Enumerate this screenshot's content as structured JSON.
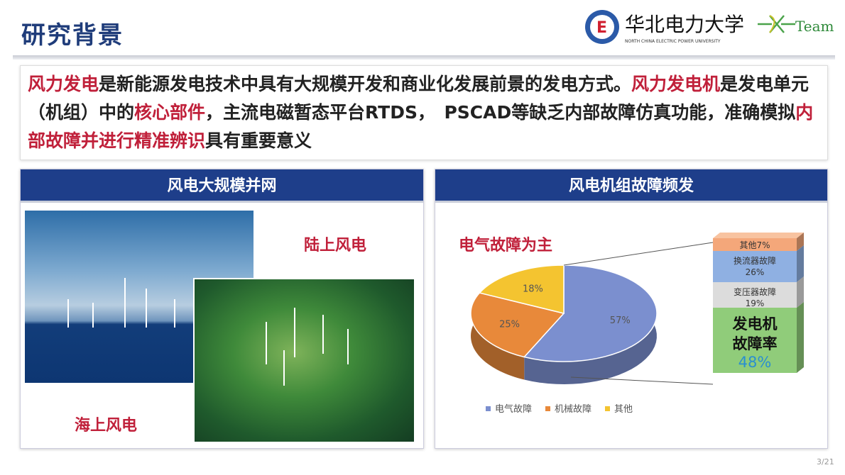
{
  "title": "研究背景",
  "logo": {
    "university_cn": "华北电力大学",
    "university_en": "NORTH CHINA ELECTRIC POWER UNIVERSITY",
    "team": "Team"
  },
  "intro": {
    "s1_red": "风力发电",
    "s1": "是新能源发电技术中具有大规模开发和商业化发展前景的发电方式。",
    "s2_red": "风力发电机",
    "s2": "是发电单元（机组）中的",
    "s2_red2": "核心部件",
    "s2b": "，主流电磁暂态平台RTDS，　PSCAD等缺乏内部故障仿真功能，准确模拟",
    "s3_red": "内部故障并进行精准辨识",
    "s3": "具有重要意义"
  },
  "left_panel": {
    "header": "风电大规模并网",
    "onshore": "陆上风电",
    "offshore": "海上风电"
  },
  "right_panel": {
    "header": "风电机组故障频发",
    "subtitle": "电气故障为主"
  },
  "chart_data": {
    "type": "pie",
    "categories": [
      "电气故障",
      "机械故障",
      "其他"
    ],
    "values": [
      57,
      25,
      18
    ],
    "labels": [
      "57%",
      "25%",
      "18%"
    ],
    "colors": [
      "#7b8fcf",
      "#e8893a",
      "#f4c430"
    ],
    "legend": "bottom",
    "breakdown": [
      {
        "label": "其他7%",
        "value": 7,
        "color": "#f4a77a"
      },
      {
        "label": "换流器故障",
        "pct": "26%",
        "value": 26,
        "color": "#8fb0e2"
      },
      {
        "label": "变压器故障",
        "pct": "19%",
        "value": 19,
        "color": "#dcdcdc"
      },
      {
        "label": "发电机故障率",
        "pct": "48%",
        "value": 48,
        "color": "#90cc7a"
      }
    ]
  },
  "page": "3/21"
}
